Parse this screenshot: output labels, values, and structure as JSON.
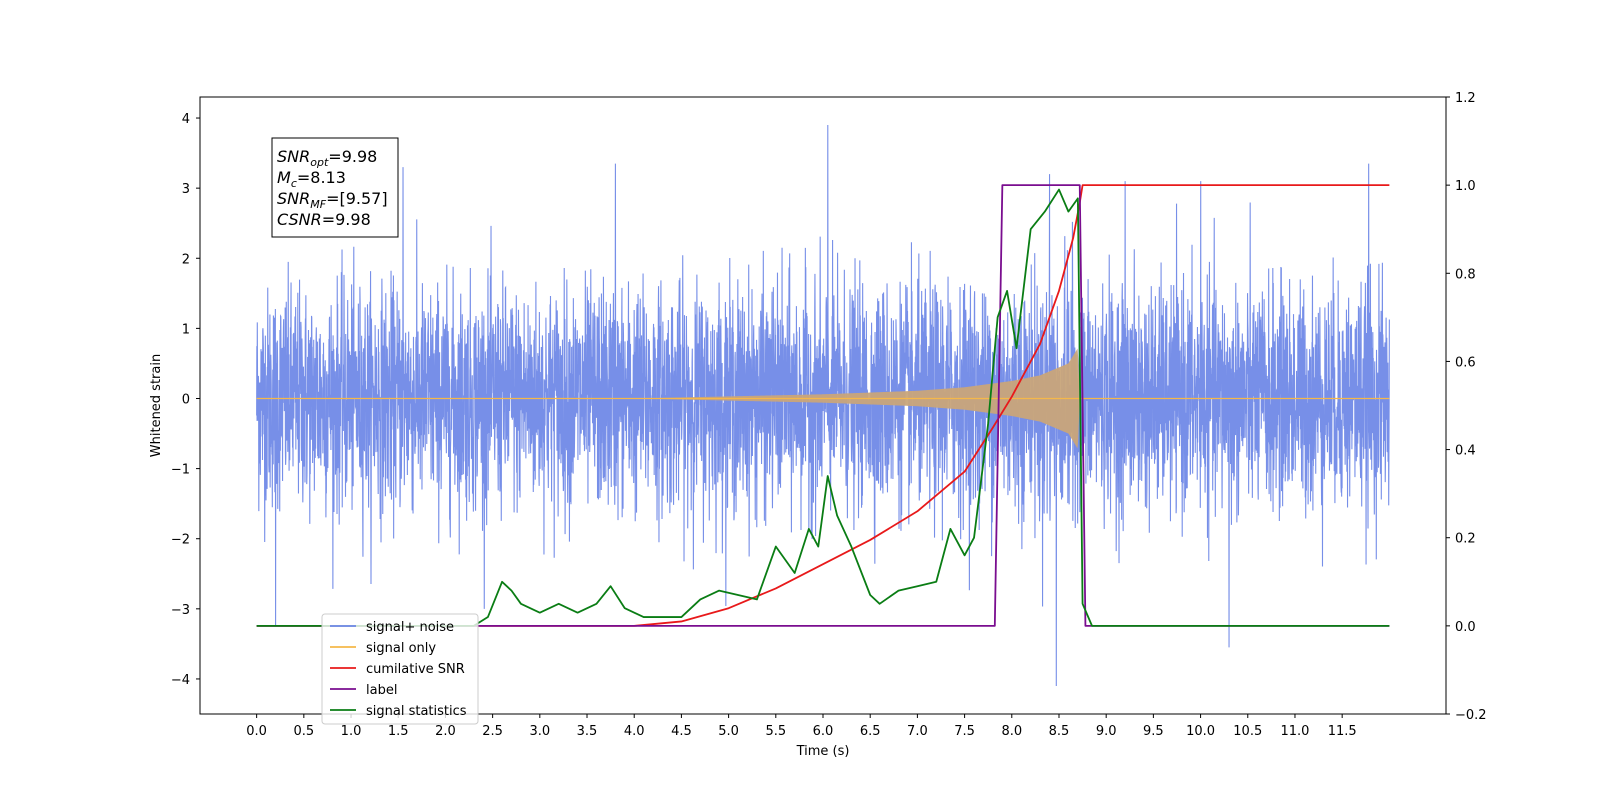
{
  "chart_data": {
    "type": "line",
    "title": "",
    "xlabel": "Time (s)",
    "ylabel": "Whitened strain",
    "xlim": [
      -0.6,
      12.6
    ],
    "ylim": [
      -4.5,
      4.3
    ],
    "y2lim": [
      -0.2,
      1.2
    ],
    "x_ticks": [
      "0.0",
      "0.5",
      "1.0",
      "1.5",
      "2.0",
      "2.5",
      "3.0",
      "3.5",
      "4.0",
      "4.5",
      "5.0",
      "5.5",
      "6.0",
      "6.5",
      "7.0",
      "7.5",
      "8.0",
      "8.5",
      "9.0",
      "9.5",
      "10.0",
      "10.5",
      "11.0",
      "11.5"
    ],
    "y_ticks": [
      "4",
      "3",
      "2",
      "1",
      "0",
      "−1",
      "−2",
      "−3",
      "−4"
    ],
    "y2_ticks": [
      "1.2",
      "1.0",
      "0.8",
      "0.6",
      "0.4",
      "0.2",
      "0.0",
      "−0.2"
    ],
    "grid": false,
    "legend_position": "lower-left",
    "annotation": [
      {
        "base": "SNR",
        "sub": "opt",
        "value": "=9.98"
      },
      {
        "base": "M",
        "sub": "c",
        "value": "=8.13"
      },
      {
        "base": "SNR",
        "sub": "MF",
        "value": "=[9.57]"
      },
      {
        "base": "CSNR",
        "sub": "",
        "value": "=9.98"
      }
    ],
    "series": [
      {
        "name": "signal+ noise",
        "color": "#6b86e6",
        "axis": "left",
        "description": "whitened noise with injected chirp, spans 0.0-12.0 s, amplitude ~±2 with spikes up to 3.9 and down to -4.1",
        "range_t": [
          0.0,
          12.0
        ],
        "spikes": [
          [
            6.05,
            3.9
          ],
          [
            8.47,
            -4.1
          ],
          [
            0.2,
            -3.25
          ],
          [
            10.3,
            -3.55
          ],
          [
            11.78,
            3.35
          ],
          [
            3.8,
            3.35
          ],
          [
            1.55,
            3.3
          ],
          [
            8.4,
            3.2
          ],
          [
            9.2,
            3.1
          ],
          [
            10.0,
            3.1
          ]
        ]
      },
      {
        "name": "signal only",
        "color": "#f5b84a",
        "axis": "left",
        "description": "chirp signal, amplitude grows from 0 to ~0.7 at 8.7 s then stops",
        "envelope": [
          [
            0.0,
            0.0
          ],
          [
            4.0,
            0.0
          ],
          [
            5.0,
            0.03
          ],
          [
            6.0,
            0.06
          ],
          [
            7.0,
            0.11
          ],
          [
            7.5,
            0.16
          ],
          [
            8.0,
            0.25
          ],
          [
            8.3,
            0.33
          ],
          [
            8.6,
            0.5
          ],
          [
            8.7,
            0.72
          ],
          [
            8.72,
            0.0
          ]
        ]
      },
      {
        "name": "cumilative SNR",
        "color": "#e8191a",
        "axis": "right",
        "points": [
          [
            0.0,
            0.0
          ],
          [
            4.0,
            0.0
          ],
          [
            4.5,
            0.01
          ],
          [
            5.0,
            0.04
          ],
          [
            5.5,
            0.085
          ],
          [
            6.0,
            0.14
          ],
          [
            6.5,
            0.195
          ],
          [
            7.0,
            0.26
          ],
          [
            7.5,
            0.35
          ],
          [
            7.8,
            0.45
          ],
          [
            8.0,
            0.52
          ],
          [
            8.3,
            0.64
          ],
          [
            8.5,
            0.76
          ],
          [
            8.65,
            0.88
          ],
          [
            8.72,
            0.96
          ],
          [
            8.75,
            1.0
          ],
          [
            12.0,
            1.0
          ]
        ]
      },
      {
        "name": "label",
        "color": "#7a0d8f",
        "axis": "right",
        "points": [
          [
            0.0,
            0.0
          ],
          [
            7.82,
            0.0
          ],
          [
            7.9,
            1.0
          ],
          [
            8.72,
            1.0
          ],
          [
            8.78,
            0.0
          ],
          [
            12.0,
            0.0
          ]
        ]
      },
      {
        "name": "signal statistics",
        "color": "#0a7d14",
        "axis": "right",
        "points": [
          [
            0.0,
            0.0
          ],
          [
            2.3,
            0.0
          ],
          [
            2.45,
            0.02
          ],
          [
            2.6,
            0.1
          ],
          [
            2.7,
            0.08
          ],
          [
            2.8,
            0.05
          ],
          [
            3.0,
            0.03
          ],
          [
            3.2,
            0.05
          ],
          [
            3.4,
            0.03
          ],
          [
            3.6,
            0.05
          ],
          [
            3.75,
            0.09
          ],
          [
            3.9,
            0.04
          ],
          [
            4.1,
            0.02
          ],
          [
            4.5,
            0.02
          ],
          [
            4.7,
            0.06
          ],
          [
            4.9,
            0.08
          ],
          [
            5.1,
            0.07
          ],
          [
            5.3,
            0.06
          ],
          [
            5.5,
            0.18
          ],
          [
            5.7,
            0.12
          ],
          [
            5.85,
            0.22
          ],
          [
            5.95,
            0.18
          ],
          [
            6.05,
            0.34
          ],
          [
            6.15,
            0.25
          ],
          [
            6.3,
            0.18
          ],
          [
            6.5,
            0.07
          ],
          [
            6.6,
            0.05
          ],
          [
            6.8,
            0.08
          ],
          [
            7.0,
            0.09
          ],
          [
            7.2,
            0.1
          ],
          [
            7.35,
            0.22
          ],
          [
            7.5,
            0.16
          ],
          [
            7.6,
            0.2
          ],
          [
            7.75,
            0.46
          ],
          [
            7.85,
            0.7
          ],
          [
            7.95,
            0.76
          ],
          [
            8.05,
            0.63
          ],
          [
            8.2,
            0.9
          ],
          [
            8.35,
            0.94
          ],
          [
            8.5,
            0.99
          ],
          [
            8.6,
            0.94
          ],
          [
            8.7,
            0.97
          ],
          [
            8.75,
            0.05
          ],
          [
            8.85,
            0.0
          ],
          [
            9.6,
            0.0
          ],
          [
            12.0,
            0.0
          ]
        ]
      }
    ]
  }
}
